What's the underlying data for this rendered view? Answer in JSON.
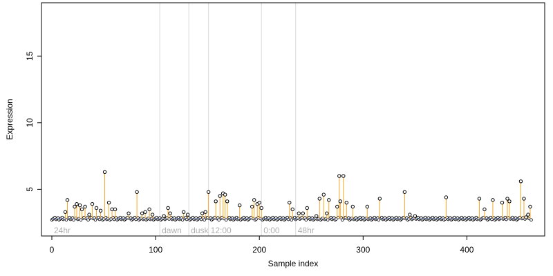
{
  "chart_data": {
    "type": "scatter",
    "title": "",
    "xlabel": "Sample index",
    "ylabel": "Expression",
    "xlim": [
      -10,
      475
    ],
    "ylim": [
      1.5,
      19
    ],
    "x_ticks": [
      0,
      100,
      200,
      300,
      400
    ],
    "y_ticks": [
      5,
      10,
      15
    ],
    "baseline": 2.8,
    "colors": {
      "stem": "#f5a623",
      "point_stroke": "#000000",
      "point_fill": "#ffffff",
      "baseline_point": "#6f8fd8",
      "region_line": "#d9d9d9",
      "region_text": "#b0b0b0"
    },
    "regions": [
      {
        "label": "24hr",
        "start": 0,
        "end": 104
      },
      {
        "label": "dawn",
        "start": 104,
        "end": 132
      },
      {
        "label": "dusk",
        "start": 132,
        "end": 151
      },
      {
        "label": "12:00",
        "start": 151,
        "end": 202
      },
      {
        "label": "0:00",
        "start": 202,
        "end": 235
      },
      {
        "label": "48hr",
        "start": 235,
        "end": 462
      }
    ],
    "points": [
      [
        13,
        3.3
      ],
      [
        15,
        4.2
      ],
      [
        22,
        3.7
      ],
      [
        24,
        3.9
      ],
      [
        27,
        3.8
      ],
      [
        29,
        3.5
      ],
      [
        32,
        3.7
      ],
      [
        36,
        3.1
      ],
      [
        39,
        3.9
      ],
      [
        43,
        3.6
      ],
      [
        47,
        3.4
      ],
      [
        51,
        6.3
      ],
      [
        55,
        4.0
      ],
      [
        58,
        3.5
      ],
      [
        61,
        3.5
      ],
      [
        74,
        3.2
      ],
      [
        82,
        4.8
      ],
      [
        87,
        3.2
      ],
      [
        90,
        3.3
      ],
      [
        94,
        3.5
      ],
      [
        97,
        3.1
      ],
      [
        108,
        3.0
      ],
      [
        112,
        3.6
      ],
      [
        114,
        3.2
      ],
      [
        127,
        3.3
      ],
      [
        131,
        3.1
      ],
      [
        145,
        3.2
      ],
      [
        148,
        3.3
      ],
      [
        151,
        4.8
      ],
      [
        158,
        4.1
      ],
      [
        162,
        4.5
      ],
      [
        165,
        4.7
      ],
      [
        167,
        4.6
      ],
      [
        169,
        4.1
      ],
      [
        181,
        3.8
      ],
      [
        193,
        3.7
      ],
      [
        195,
        4.2
      ],
      [
        198,
        3.9
      ],
      [
        200,
        4.0
      ],
      [
        202,
        3.6
      ],
      [
        229,
        4.0
      ],
      [
        232,
        3.5
      ],
      [
        238,
        3.2
      ],
      [
        242,
        3.2
      ],
      [
        246,
        3.6
      ],
      [
        255,
        3.0
      ],
      [
        258,
        4.3
      ],
      [
        262,
        4.6
      ],
      [
        265,
        3.2
      ],
      [
        267,
        4.2
      ],
      [
        275,
        3.7
      ],
      [
        277,
        6.0
      ],
      [
        278,
        4.1
      ],
      [
        281,
        6.0
      ],
      [
        284,
        4.0
      ],
      [
        290,
        3.7
      ],
      [
        304,
        3.7
      ],
      [
        316,
        4.3
      ],
      [
        340,
        4.8
      ],
      [
        345,
        3.1
      ],
      [
        350,
        3.0
      ],
      [
        380,
        4.4
      ],
      [
        412,
        4.3
      ],
      [
        417,
        3.5
      ],
      [
        425,
        4.2
      ],
      [
        434,
        4.0
      ],
      [
        439,
        4.3
      ],
      [
        441,
        4.1
      ],
      [
        452,
        5.6
      ],
      [
        455,
        4.3
      ],
      [
        457,
        2.9
      ],
      [
        459,
        3.1
      ],
      [
        461,
        3.7
      ]
    ]
  }
}
